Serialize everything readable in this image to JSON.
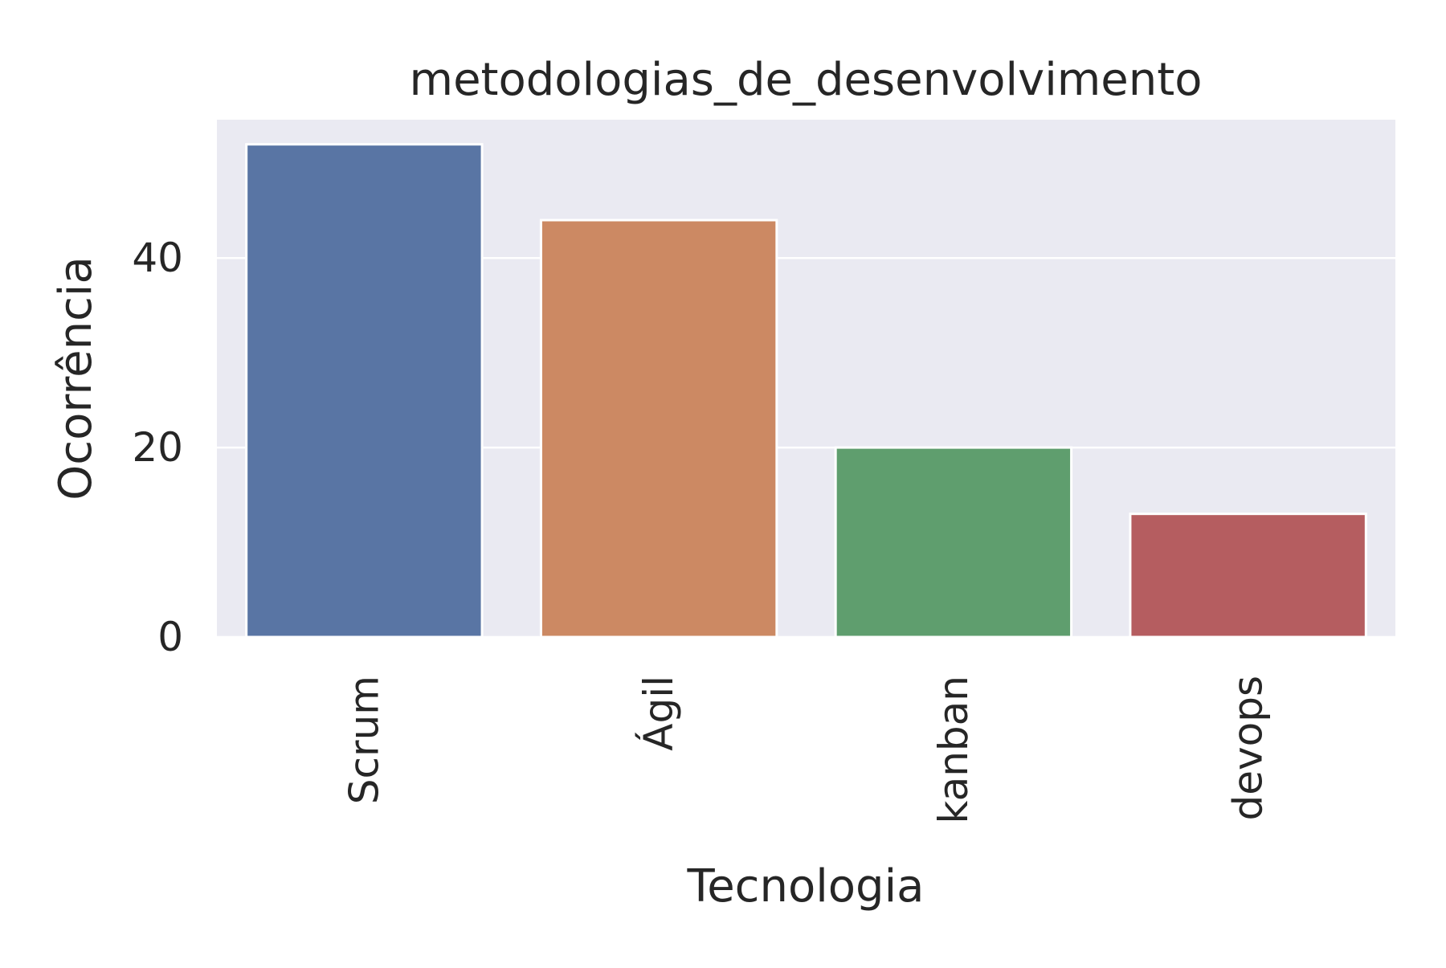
{
  "chart_data": {
    "type": "bar",
    "title": "metodologias_de_desenvolvimento",
    "xlabel": "Tecnologia",
    "ylabel": "Ocorrência",
    "categories": [
      "Scrum",
      "Ágil",
      "kanban",
      "devops"
    ],
    "values": [
      52,
      44,
      20,
      13
    ],
    "colors": [
      "#5975a4",
      "#cc8963",
      "#5f9e6e",
      "#b55d60"
    ],
    "yticks": [
      0,
      20,
      40
    ],
    "ylim": [
      0,
      54.6
    ],
    "grid": true,
    "background": "#eaeaf2",
    "gridColor": "#ffffff"
  }
}
